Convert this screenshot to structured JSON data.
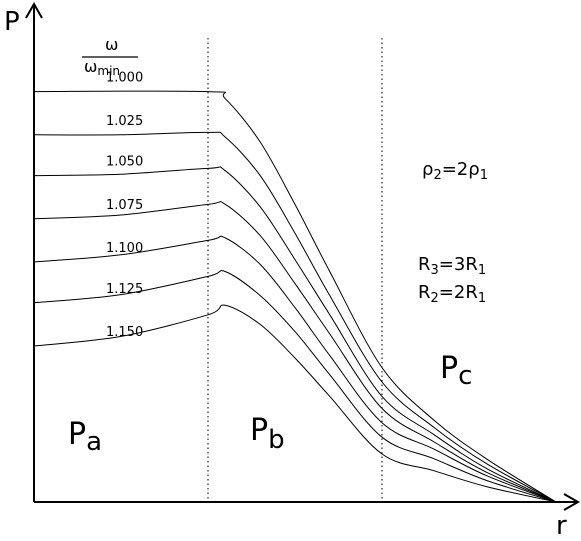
{
  "chart_data": {
    "type": "line",
    "xlabel": "r",
    "ylabel": "P",
    "legend_title": {
      "numerator": "ω",
      "denominator": "ω",
      "denominator_subscript": "min"
    },
    "regions": [
      {
        "base": "P",
        "sub": "a"
      },
      {
        "base": "P",
        "sub": "b"
      },
      {
        "base": "P",
        "sub": "c"
      }
    ],
    "annotations": {
      "density": {
        "lhs": "ρ",
        "lhs_sub": "2",
        "eq": "=2",
        "rhs": "ρ",
        "rhs_sub": "1"
      },
      "radius3": {
        "lhs": "R",
        "lhs_sub": "3",
        "eq": "=3",
        "rhs": "R",
        "rhs_sub": "1"
      },
      "radius2": {
        "lhs": "R",
        "lhs_sub": "2",
        "eq": "=2",
        "rhs": "R",
        "rhs_sub": "1"
      }
    },
    "boundaries_r": [
      1,
      2,
      3
    ],
    "ylim": [
      0,
      1
    ],
    "series": [
      {
        "name": "1.000",
        "values": [
          [
            0,
            0.855
          ],
          [
            1,
            0.855
          ],
          [
            1.1,
            0.84
          ],
          [
            1.3,
            0.75
          ],
          [
            1.5,
            0.62
          ],
          [
            1.7,
            0.48
          ],
          [
            2,
            0.28
          ],
          [
            2.3,
            0.17
          ],
          [
            2.6,
            0.09
          ],
          [
            3,
            0
          ]
        ]
      },
      {
        "name": "1.025",
        "values": [
          [
            0,
            0.765
          ],
          [
            0.5,
            0.765
          ],
          [
            1,
            0.77
          ],
          [
            1.1,
            0.76
          ],
          [
            1.3,
            0.68
          ],
          [
            1.5,
            0.56
          ],
          [
            1.7,
            0.43
          ],
          [
            2,
            0.25
          ],
          [
            2.3,
            0.155
          ],
          [
            2.6,
            0.08
          ],
          [
            3,
            0
          ]
        ]
      },
      {
        "name": "1.050",
        "values": [
          [
            0,
            0.68
          ],
          [
            0.5,
            0.683
          ],
          [
            1,
            0.695
          ],
          [
            1.1,
            0.69
          ],
          [
            1.3,
            0.615
          ],
          [
            1.5,
            0.505
          ],
          [
            1.7,
            0.39
          ],
          [
            2,
            0.22
          ],
          [
            2.3,
            0.14
          ],
          [
            2.6,
            0.07
          ],
          [
            3,
            0
          ]
        ]
      },
      {
        "name": "1.075",
        "values": [
          [
            0,
            0.59
          ],
          [
            0.5,
            0.598
          ],
          [
            1,
            0.62
          ],
          [
            1.1,
            0.62
          ],
          [
            1.3,
            0.555
          ],
          [
            1.5,
            0.455
          ],
          [
            1.7,
            0.35
          ],
          [
            2,
            0.195
          ],
          [
            2.3,
            0.125
          ],
          [
            2.6,
            0.062
          ],
          [
            3,
            0
          ]
        ]
      },
      {
        "name": "1.100",
        "values": [
          [
            0,
            0.5
          ],
          [
            0.5,
            0.515
          ],
          [
            1,
            0.545
          ],
          [
            1.1,
            0.55
          ],
          [
            1.3,
            0.495
          ],
          [
            1.5,
            0.405
          ],
          [
            1.7,
            0.305
          ],
          [
            2,
            0.165
          ],
          [
            2.3,
            0.11
          ],
          [
            2.6,
            0.055
          ],
          [
            3,
            0
          ]
        ]
      },
      {
        "name": "1.125",
        "values": [
          [
            0,
            0.415
          ],
          [
            0.5,
            0.432
          ],
          [
            1,
            0.47
          ],
          [
            1.1,
            0.48
          ],
          [
            1.3,
            0.43
          ],
          [
            1.5,
            0.355
          ],
          [
            1.7,
            0.265
          ],
          [
            2,
            0.135
          ],
          [
            2.3,
            0.09
          ],
          [
            2.6,
            0.045
          ],
          [
            3,
            0
          ]
        ]
      },
      {
        "name": "1.150",
        "values": [
          [
            0,
            0.325
          ],
          [
            0.5,
            0.345
          ],
          [
            1,
            0.39
          ],
          [
            1.1,
            0.41
          ],
          [
            1.3,
            0.37
          ],
          [
            1.5,
            0.3
          ],
          [
            1.7,
            0.22
          ],
          [
            2,
            0.1
          ],
          [
            2.3,
            0.065
          ],
          [
            2.6,
            0.032
          ],
          [
            3,
            0
          ]
        ]
      }
    ]
  }
}
